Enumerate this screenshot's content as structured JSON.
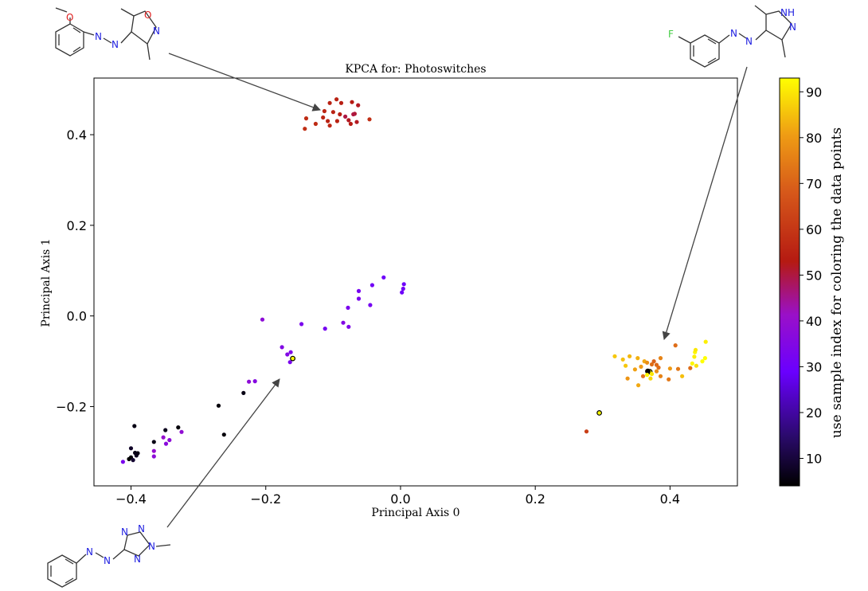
{
  "chart_data": {
    "type": "scatter",
    "title": "KPCA for: Photoswitches",
    "xlabel": "Principal Axis 0",
    "ylabel": "Principal Axis 1",
    "xlim": [
      -0.455,
      0.5
    ],
    "ylim": [
      -0.375,
      0.525
    ],
    "xticks": [
      -0.4,
      -0.2,
      0.0,
      0.2,
      0.4
    ],
    "yticks": [
      -0.2,
      0.0,
      0.2,
      0.4
    ],
    "xtick_labels": [
      "−0.4",
      "−0.2",
      "0.0",
      "0.2",
      "0.4"
    ],
    "ytick_labels": [
      "−0.2",
      "0.0",
      "0.2",
      "0.4"
    ],
    "grid": false,
    "colormap": "gnuplot",
    "colorbar": {
      "label": "use sample index for coloring the data points",
      "range": [
        4,
        93
      ],
      "ticks": [
        10,
        20,
        30,
        40,
        50,
        60,
        70,
        80,
        90
      ],
      "tick_labels": [
        "10",
        "20",
        "30",
        "40",
        "50",
        "60",
        "70",
        "80",
        "90"
      ]
    },
    "points": [
      {
        "x": -0.105,
        "y": 0.47,
        "c": 55
      },
      {
        "x": -0.095,
        "y": 0.478,
        "c": 55
      },
      {
        "x": -0.088,
        "y": 0.47,
        "c": 54
      },
      {
        "x": -0.072,
        "y": 0.472,
        "c": 53
      },
      {
        "x": -0.063,
        "y": 0.465,
        "c": 52
      },
      {
        "x": -0.113,
        "y": 0.452,
        "c": 56
      },
      {
        "x": -0.1,
        "y": 0.45,
        "c": 55
      },
      {
        "x": -0.09,
        "y": 0.445,
        "c": 54
      },
      {
        "x": -0.082,
        "y": 0.44,
        "c": 50
      },
      {
        "x": -0.14,
        "y": 0.436,
        "c": 57
      },
      {
        "x": -0.115,
        "y": 0.438,
        "c": 56
      },
      {
        "x": -0.108,
        "y": 0.43,
        "c": 55
      },
      {
        "x": -0.126,
        "y": 0.424,
        "c": 57
      },
      {
        "x": -0.105,
        "y": 0.42,
        "c": 56
      },
      {
        "x": -0.074,
        "y": 0.424,
        "c": 53
      },
      {
        "x": -0.065,
        "y": 0.428,
        "c": 52
      },
      {
        "x": -0.068,
        "y": 0.446,
        "c": 51
      },
      {
        "x": -0.077,
        "y": 0.432,
        "c": 52
      },
      {
        "x": -0.142,
        "y": 0.413,
        "c": 58
      },
      {
        "x": -0.046,
        "y": 0.434,
        "c": 58
      },
      {
        "x": -0.07,
        "y": 0.445,
        "c": 50
      },
      {
        "x": -0.094,
        "y": 0.43,
        "c": 55
      },
      {
        "x": -0.025,
        "y": 0.085,
        "c": 30
      },
      {
        "x": -0.042,
        "y": 0.068,
        "c": 31
      },
      {
        "x": 0.005,
        "y": 0.07,
        "c": 30
      },
      {
        "x": 0.004,
        "y": 0.06,
        "c": 31
      },
      {
        "x": 0.002,
        "y": 0.052,
        "c": 30
      },
      {
        "x": -0.062,
        "y": 0.055,
        "c": 32
      },
      {
        "x": -0.062,
        "y": 0.038,
        "c": 33
      },
      {
        "x": -0.045,
        "y": 0.024,
        "c": 32
      },
      {
        "x": -0.078,
        "y": 0.018,
        "c": 33
      },
      {
        "x": -0.085,
        "y": -0.015,
        "c": 35
      },
      {
        "x": -0.077,
        "y": -0.024,
        "c": 34
      },
      {
        "x": -0.112,
        "y": -0.028,
        "c": 32
      },
      {
        "x": -0.147,
        "y": -0.018,
        "c": 33
      },
      {
        "x": -0.205,
        "y": -0.008,
        "c": 38
      },
      {
        "x": -0.176,
        "y": -0.069,
        "c": 35
      },
      {
        "x": -0.168,
        "y": -0.085,
        "c": 35
      },
      {
        "x": -0.163,
        "y": -0.08,
        "c": 34
      },
      {
        "x": -0.164,
        "y": -0.102,
        "c": 33
      },
      {
        "x": -0.16,
        "y": -0.094,
        "c": 93,
        "edge": true
      },
      {
        "x": -0.225,
        "y": -0.145,
        "c": 38
      },
      {
        "x": -0.216,
        "y": -0.144,
        "c": 36
      },
      {
        "x": -0.233,
        "y": -0.17,
        "c": 6
      },
      {
        "x": -0.27,
        "y": -0.198,
        "c": 5
      },
      {
        "x": -0.262,
        "y": -0.262,
        "c": 5
      },
      {
        "x": -0.395,
        "y": -0.243,
        "c": 6
      },
      {
        "x": -0.33,
        "y": -0.246,
        "c": 5
      },
      {
        "x": -0.325,
        "y": -0.256,
        "c": 39
      },
      {
        "x": -0.349,
        "y": -0.252,
        "c": 7
      },
      {
        "x": -0.352,
        "y": -0.268,
        "c": 40
      },
      {
        "x": -0.343,
        "y": -0.274,
        "c": 38
      },
      {
        "x": -0.348,
        "y": -0.282,
        "c": 37
      },
      {
        "x": -0.366,
        "y": -0.278,
        "c": 6
      },
      {
        "x": -0.366,
        "y": -0.298,
        "c": 40
      },
      {
        "x": -0.366,
        "y": -0.31,
        "c": 38
      },
      {
        "x": -0.4,
        "y": -0.292,
        "c": 8
      },
      {
        "x": -0.394,
        "y": -0.302,
        "c": 6
      },
      {
        "x": -0.392,
        "y": -0.308,
        "c": 7
      },
      {
        "x": -0.4,
        "y": -0.312,
        "c": 5
      },
      {
        "x": -0.397,
        "y": -0.318,
        "c": 9
      },
      {
        "x": -0.39,
        "y": -0.303,
        "c": 6
      },
      {
        "x": -0.403,
        "y": -0.316,
        "c": 4
      },
      {
        "x": -0.412,
        "y": -0.322,
        "c": 33
      },
      {
        "x": 0.276,
        "y": -0.255,
        "c": 62
      },
      {
        "x": 0.295,
        "y": -0.214,
        "c": 93,
        "edge": true
      },
      {
        "x": 0.318,
        "y": -0.089,
        "c": 86
      },
      {
        "x": 0.33,
        "y": -0.096,
        "c": 85
      },
      {
        "x": 0.34,
        "y": -0.089,
        "c": 84
      },
      {
        "x": 0.352,
        "y": -0.093,
        "c": 83
      },
      {
        "x": 0.362,
        "y": -0.1,
        "c": 82
      },
      {
        "x": 0.334,
        "y": -0.11,
        "c": 86
      },
      {
        "x": 0.348,
        "y": -0.118,
        "c": 81
      },
      {
        "x": 0.357,
        "y": -0.112,
        "c": 80
      },
      {
        "x": 0.366,
        "y": -0.103,
        "c": 78
      },
      {
        "x": 0.373,
        "y": -0.107,
        "c": 72
      },
      {
        "x": 0.376,
        "y": -0.1,
        "c": 70
      },
      {
        "x": 0.38,
        "y": -0.108,
        "c": 71
      },
      {
        "x": 0.386,
        "y": -0.093,
        "c": 76
      },
      {
        "x": 0.383,
        "y": -0.114,
        "c": 72
      },
      {
        "x": 0.37,
        "y": -0.123,
        "c": 93,
        "edge": true
      },
      {
        "x": 0.367,
        "y": -0.122,
        "c": 5,
        "edge": true
      },
      {
        "x": 0.38,
        "y": -0.122,
        "c": 78
      },
      {
        "x": 0.373,
        "y": -0.128,
        "c": 90
      },
      {
        "x": 0.366,
        "y": -0.13,
        "c": 92
      },
      {
        "x": 0.36,
        "y": -0.133,
        "c": 73
      },
      {
        "x": 0.386,
        "y": -0.133,
        "c": 76
      },
      {
        "x": 0.371,
        "y": -0.138,
        "c": 88
      },
      {
        "x": 0.337,
        "y": -0.138,
        "c": 79
      },
      {
        "x": 0.353,
        "y": -0.153,
        "c": 82
      },
      {
        "x": 0.398,
        "y": -0.14,
        "c": 74
      },
      {
        "x": 0.4,
        "y": -0.116,
        "c": 80
      },
      {
        "x": 0.412,
        "y": -0.117,
        "c": 74
      },
      {
        "x": 0.418,
        "y": -0.133,
        "c": 85
      },
      {
        "x": 0.43,
        "y": -0.115,
        "c": 72
      },
      {
        "x": 0.439,
        "y": -0.11,
        "c": 89
      },
      {
        "x": 0.433,
        "y": -0.105,
        "c": 92
      },
      {
        "x": 0.436,
        "y": -0.09,
        "c": 91
      },
      {
        "x": 0.437,
        "y": -0.08,
        "c": 92
      },
      {
        "x": 0.438,
        "y": -0.075,
        "c": 90
      },
      {
        "x": 0.448,
        "y": -0.1,
        "c": 93
      },
      {
        "x": 0.452,
        "y": -0.093,
        "c": 93
      },
      {
        "x": 0.453,
        "y": -0.057,
        "c": 91
      },
      {
        "x": 0.408,
        "y": -0.065,
        "c": 72
      }
    ]
  },
  "molecules": [
    {
      "id": "top-left",
      "atoms": [
        "O",
        "N",
        "N",
        "O",
        "N"
      ]
    },
    {
      "id": "top-right",
      "atoms": [
        "NH",
        "N",
        "F",
        "N",
        "N"
      ]
    },
    {
      "id": "bottom-left",
      "atoms": [
        "N",
        "N",
        "N",
        "N",
        "N",
        "N"
      ]
    }
  ]
}
